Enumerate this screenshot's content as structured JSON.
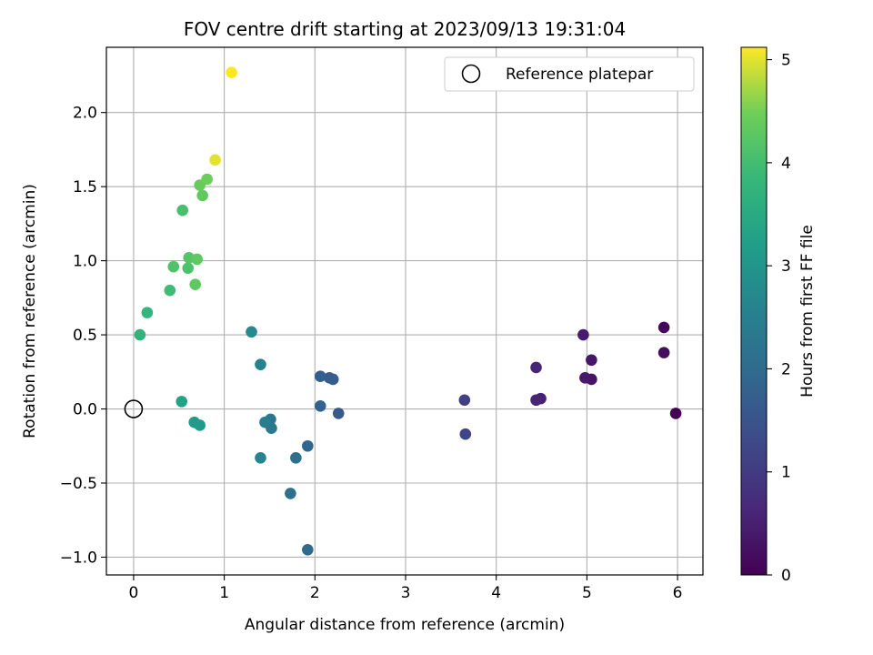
{
  "chart_data": {
    "type": "scatter",
    "title": "FOV centre drift starting at 2023/09/13 19:31:04",
    "xlabel": "Angular distance from reference (arcmin)",
    "ylabel": "Rotation from reference (arcmin)",
    "xlim": [
      -0.3,
      6.28
    ],
    "ylim": [
      -1.12,
      2.44
    ],
    "xticks": [
      0,
      1,
      2,
      3,
      4,
      5,
      6
    ],
    "yticks": [
      -1.0,
      -0.5,
      0.0,
      0.5,
      1.0,
      1.5,
      2.0
    ],
    "xtick_labels": [
      "0",
      "1",
      "2",
      "3",
      "4",
      "5",
      "6"
    ],
    "ytick_labels": [
      "−1.0",
      "−0.5",
      "0.0",
      "0.5",
      "1.0",
      "1.5",
      "2.0"
    ],
    "grid": true,
    "legend": {
      "position": "top-right",
      "entries": [
        "Reference platepar"
      ]
    },
    "reference_point": {
      "x": 0,
      "y": 0,
      "marker": "open-circle"
    },
    "colorbar": {
      "label": "Hours from first FF file",
      "colormap": "viridis",
      "range": [
        0,
        5.12
      ],
      "ticks": [
        0,
        1,
        2,
        3,
        4,
        5
      ],
      "tick_labels": [
        "0",
        "1",
        "2",
        "3",
        "4",
        "5"
      ]
    },
    "points": [
      {
        "x": 5.98,
        "y": -0.03,
        "c": 0.0
      },
      {
        "x": 5.85,
        "y": 0.55,
        "c": 0.1
      },
      {
        "x": 5.85,
        "y": 0.38,
        "c": 0.2
      },
      {
        "x": 5.05,
        "y": 0.2,
        "c": 0.3
      },
      {
        "x": 5.05,
        "y": 0.33,
        "c": 0.35
      },
      {
        "x": 4.98,
        "y": 0.21,
        "c": 0.4
      },
      {
        "x": 4.96,
        "y": 0.5,
        "c": 0.45
      },
      {
        "x": 4.49,
        "y": 0.07,
        "c": 0.55
      },
      {
        "x": 4.44,
        "y": 0.06,
        "c": 0.6
      },
      {
        "x": 4.44,
        "y": 0.28,
        "c": 0.6
      },
      {
        "x": 3.65,
        "y": 0.06,
        "c": 1.1
      },
      {
        "x": 3.66,
        "y": -0.17,
        "c": 1.2
      },
      {
        "x": 2.26,
        "y": -0.03,
        "c": 1.6
      },
      {
        "x": 2.2,
        "y": 0.2,
        "c": 1.65
      },
      {
        "x": 2.16,
        "y": 0.21,
        "c": 1.7
      },
      {
        "x": 2.06,
        "y": 0.22,
        "c": 1.75
      },
      {
        "x": 2.06,
        "y": 0.02,
        "c": 1.8
      },
      {
        "x": 1.92,
        "y": -0.25,
        "c": 1.9
      },
      {
        "x": 1.92,
        "y": -0.95,
        "c": 2.0
      },
      {
        "x": 1.79,
        "y": -0.33,
        "c": 2.1
      },
      {
        "x": 1.73,
        "y": -0.57,
        "c": 2.15
      },
      {
        "x": 1.51,
        "y": -0.07,
        "c": 2.3
      },
      {
        "x": 1.52,
        "y": -0.13,
        "c": 2.35
      },
      {
        "x": 1.45,
        "y": -0.09,
        "c": 2.45
      },
      {
        "x": 1.4,
        "y": 0.3,
        "c": 2.55
      },
      {
        "x": 1.4,
        "y": -0.33,
        "c": 2.6
      },
      {
        "x": 1.3,
        "y": 0.52,
        "c": 2.75
      },
      {
        "x": 0.73,
        "y": -0.11,
        "c": 3.1
      },
      {
        "x": 0.67,
        "y": -0.09,
        "c": 3.15
      },
      {
        "x": 0.53,
        "y": 0.05,
        "c": 3.3
      },
      {
        "x": 0.07,
        "y": 0.5,
        "c": 3.75
      },
      {
        "x": 0.15,
        "y": 0.65,
        "c": 3.8
      },
      {
        "x": 0.4,
        "y": 0.8,
        "c": 3.95
      },
      {
        "x": 0.54,
        "y": 1.34,
        "c": 4.05
      },
      {
        "x": 0.6,
        "y": 0.95,
        "c": 4.1
      },
      {
        "x": 0.44,
        "y": 0.96,
        "c": 4.15
      },
      {
        "x": 0.61,
        "y": 1.02,
        "c": 4.2
      },
      {
        "x": 0.68,
        "y": 0.84,
        "c": 4.3
      },
      {
        "x": 0.7,
        "y": 1.01,
        "c": 4.3
      },
      {
        "x": 0.76,
        "y": 1.44,
        "c": 4.35
      },
      {
        "x": 0.73,
        "y": 1.51,
        "c": 4.4
      },
      {
        "x": 0.81,
        "y": 1.55,
        "c": 4.45
      },
      {
        "x": 0.9,
        "y": 1.68,
        "c": 5.0
      },
      {
        "x": 1.08,
        "y": 2.27,
        "c": 5.12
      }
    ]
  }
}
